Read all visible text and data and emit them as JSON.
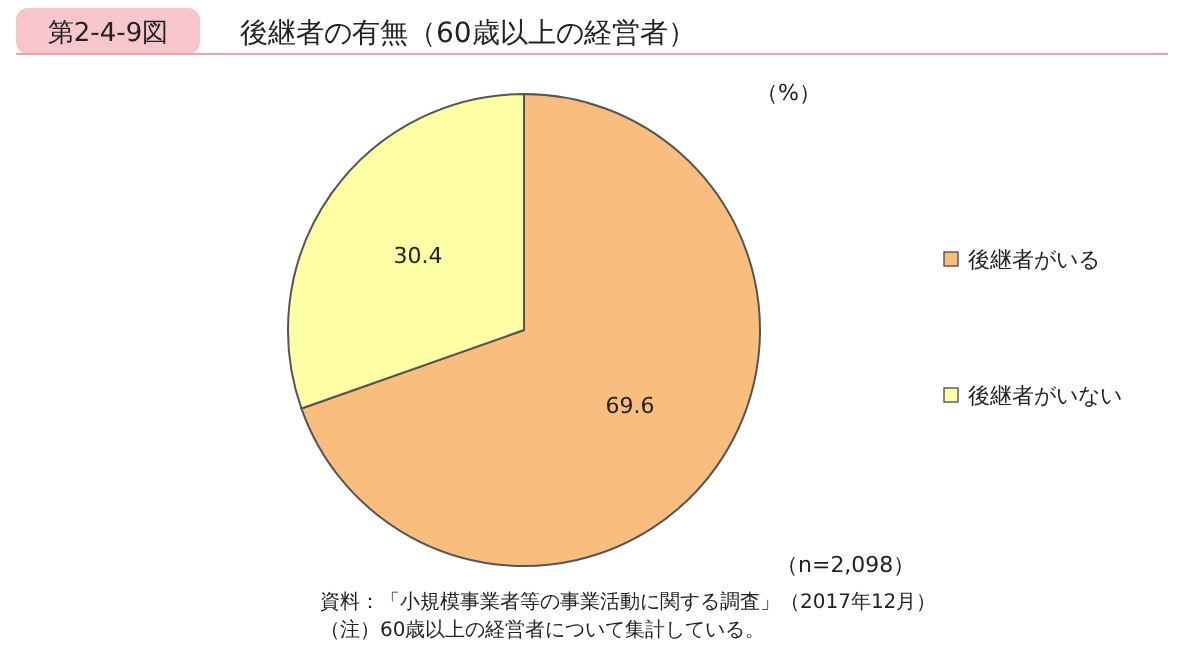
{
  "chart_data": {
    "type": "pie",
    "subtitle": "第2-4-9図",
    "title": "後継者の有無（60歳以上の経営者）",
    "categories": [
      "後継者がいる",
      "後継者がいない"
    ],
    "values": [
      69.6,
      30.4
    ],
    "colors": [
      "#f9bd7d",
      "#ffffa6"
    ],
    "data_labels": true,
    "legend": "right",
    "annotations": [
      "（%）",
      "（n=2,098）",
      "資料：「小規模事業者等の事業活動に関する調査」（2017年12月）",
      "（注）60歳以上の経営者について集計している。"
    ]
  }
}
